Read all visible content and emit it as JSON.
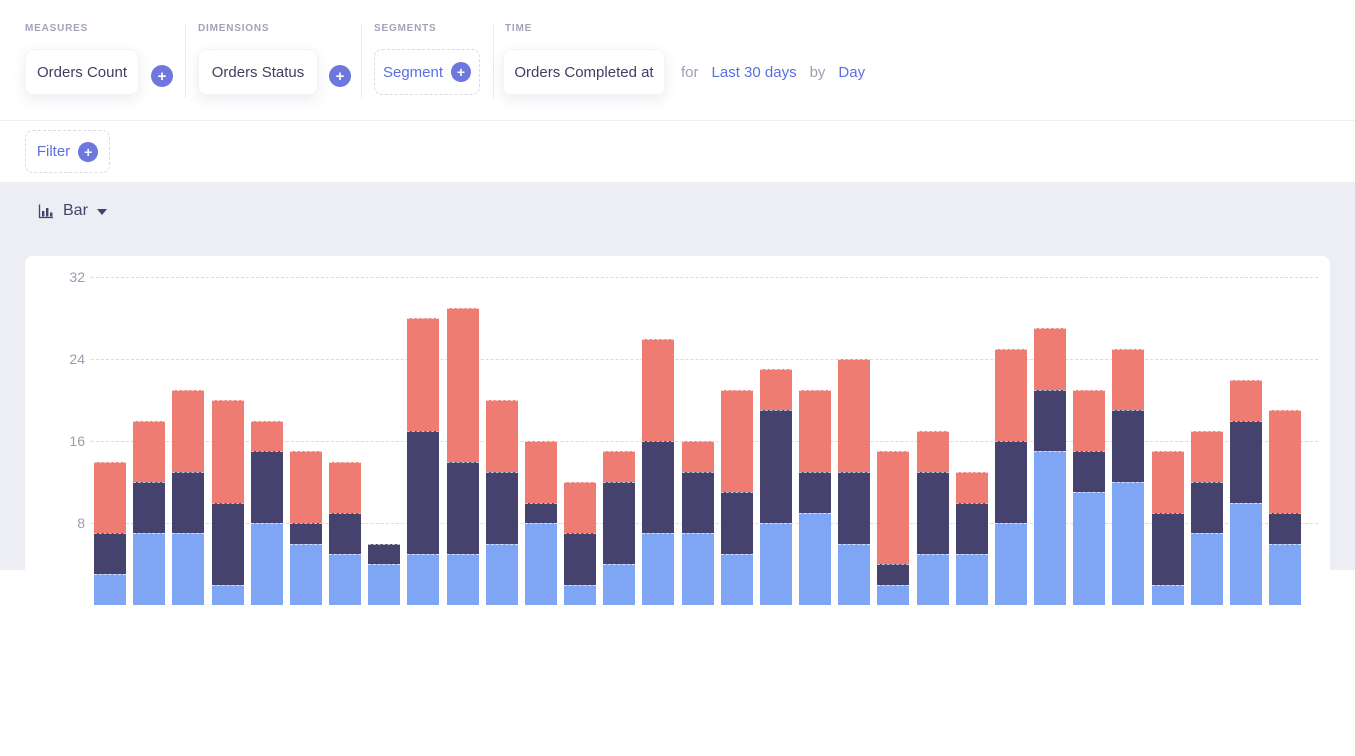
{
  "query_builder": {
    "measures": {
      "label": "MEASURES",
      "items": [
        "Orders Count"
      ]
    },
    "dimensions": {
      "label": "DIMENSIONS",
      "items": [
        "Orders Status"
      ]
    },
    "segments": {
      "label": "SEGMENTS",
      "add_placeholder": "Segment"
    },
    "time": {
      "label": "TIME",
      "dimension": "Orders Completed at",
      "for_text": "for",
      "date_range": "Last 30 days",
      "by_text": "by",
      "granularity": "Day"
    },
    "filter": {
      "add_label": "Filter"
    }
  },
  "chart_controls": {
    "chart_type": "Bar"
  },
  "chart_data": {
    "type": "bar",
    "stacked": true,
    "title": "",
    "xlabel": "",
    "ylabel": "",
    "y_ticks": [
      8,
      16,
      24,
      32
    ],
    "ylim_visible": [
      3.5,
      34
    ],
    "grid": "horizontal dashed lines only",
    "legend_position": "none visible",
    "x_tick_labels_visible": false,
    "bars_cut_off_at_bottom": true,
    "series": [
      {
        "name": "bottom-light-blue",
        "color": "#7FA6F5",
        "values": [
          3,
          7,
          7,
          2,
          8,
          6,
          5,
          4,
          5,
          5,
          6,
          8,
          2,
          4,
          7,
          7,
          5,
          8,
          9,
          6,
          2,
          5,
          5,
          8,
          15,
          11,
          12,
          2,
          7,
          10,
          6
        ]
      },
      {
        "name": "middle-dark-navy",
        "color": "#45436D",
        "values": [
          4,
          5,
          6,
          8,
          7,
          2,
          4,
          2,
          12,
          9,
          7,
          2,
          5,
          8,
          9,
          6,
          6,
          11,
          4,
          7,
          2,
          8,
          5,
          8,
          6,
          4,
          7,
          7,
          5,
          8,
          3
        ]
      },
      {
        "name": "top-salmon",
        "color": "#EE7C72",
        "values": [
          7,
          6,
          8,
          10,
          3,
          7,
          5,
          0,
          11,
          15,
          7,
          6,
          5,
          3,
          10,
          3,
          10,
          4,
          8,
          11,
          11,
          4,
          3,
          9,
          6,
          6,
          6,
          6,
          5,
          4,
          10
        ]
      }
    ]
  },
  "colors": {
    "accent_indigo": "#6D77DE",
    "link_blue": "#5A6FE6",
    "text_dark": "#3F3E63",
    "text_gray": "#9EA0B5",
    "background_lavender": "#EDEDF4",
    "gridline": "#D9D9E8",
    "bar_light_blue": "#7FA6F5",
    "bar_dark_navy": "#45436D",
    "bar_salmon": "#EE7C72"
  }
}
